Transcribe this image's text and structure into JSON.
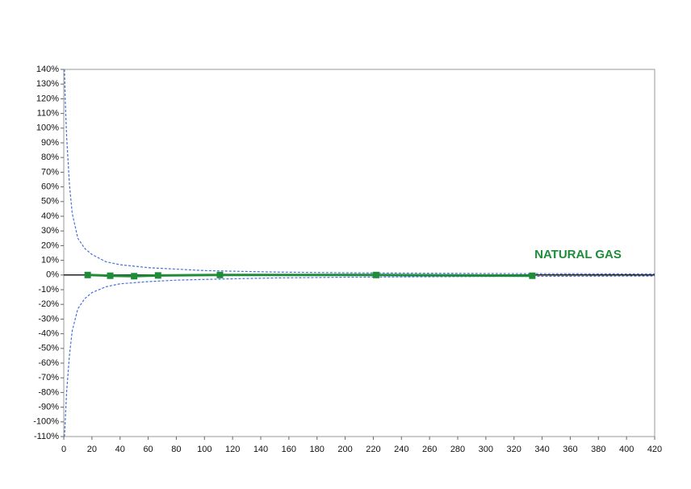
{
  "chart_data": {
    "type": "line",
    "xlim": [
      0,
      420
    ],
    "xticks": [
      0,
      20,
      40,
      60,
      80,
      100,
      120,
      140,
      160,
      180,
      200,
      220,
      240,
      260,
      280,
      300,
      320,
      340,
      360,
      380,
      400,
      420
    ],
    "ylim": [
      -110,
      140
    ],
    "yticks": [
      {
        "value": 140,
        "label": "140%"
      },
      {
        "value": 130,
        "label": "130%"
      },
      {
        "value": 120,
        "label": "120%"
      },
      {
        "value": 110,
        "label": "110%"
      },
      {
        "value": 100,
        "label": "100%"
      },
      {
        "value": 90,
        "label": "90%"
      },
      {
        "value": 80,
        "label": "80%"
      },
      {
        "value": 70,
        "label": "70%"
      },
      {
        "value": 60,
        "label": "60%"
      },
      {
        "value": 50,
        "label": "50%"
      },
      {
        "value": 40,
        "label": "40%"
      },
      {
        "value": 30,
        "label": "30%"
      },
      {
        "value": 20,
        "label": "20%"
      },
      {
        "value": 10,
        "label": "10%"
      },
      {
        "value": 0,
        "label": "0%"
      },
      {
        "value": -10,
        "label": "-10%"
      },
      {
        "value": -20,
        "label": "-20%"
      },
      {
        "value": -30,
        "label": "-30%"
      },
      {
        "value": -40,
        "label": "-40%"
      },
      {
        "value": -50,
        "label": "-50%"
      },
      {
        "value": -60,
        "label": "-60%"
      },
      {
        "value": -70,
        "label": "-70%"
      },
      {
        "value": -80,
        "label": "-80%"
      },
      {
        "value": -90,
        "label": "-90%"
      },
      {
        "value": -100,
        "label": "-100%"
      },
      {
        "value": -110,
        "label": "-110%"
      }
    ],
    "series": [
      {
        "color": "#4a6fd6",
        "dash": true,
        "x": [
          0.5,
          1,
          2,
          4,
          6,
          10,
          15,
          20,
          30,
          40,
          60,
          80,
          100,
          150,
          200,
          300,
          420
        ],
        "values": [
          140,
          120,
          95,
          62,
          42,
          25,
          18,
          14,
          9,
          7,
          5,
          4,
          3,
          2,
          1.5,
          1,
          0.7
        ]
      },
      {
        "color": "#4a6fd6",
        "dash": true,
        "x": [
          0.5,
          1,
          2,
          4,
          6,
          10,
          15,
          20,
          30,
          40,
          60,
          80,
          100,
          150,
          200,
          300,
          420
        ],
        "values": [
          -110,
          -100,
          -80,
          -55,
          -38,
          -23,
          -16,
          -12,
          -8,
          -6,
          -4.5,
          -3.5,
          -3,
          -2,
          -1.5,
          -1,
          -0.7
        ]
      },
      {
        "name": "NATURAL GAS",
        "color": "#1f8c3a",
        "marker": "square",
        "x": [
          17,
          33,
          50,
          67,
          111,
          222,
          333
        ],
        "values": [
          0,
          -0.5,
          -0.8,
          -0.3,
          0,
          0,
          -0.5
        ]
      }
    ]
  }
}
